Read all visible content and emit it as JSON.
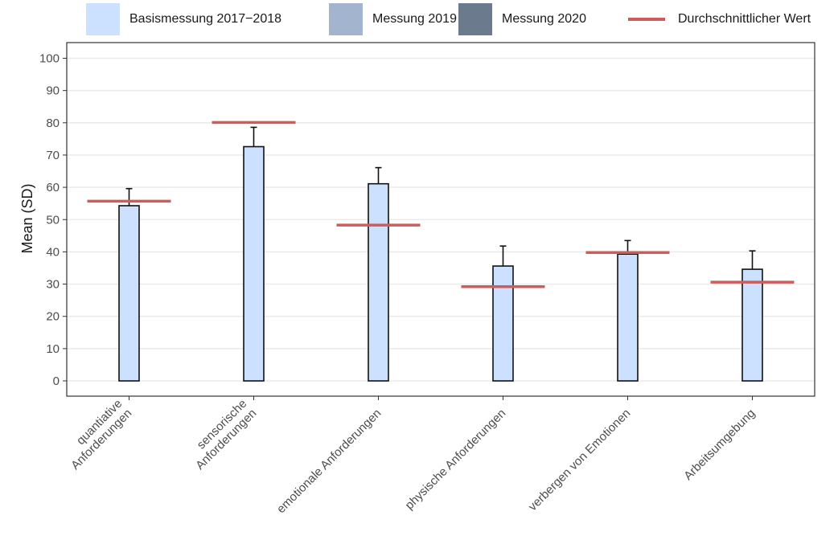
{
  "legend": {
    "items": [
      {
        "label": "Basismessung 2017−2018",
        "color": "#cce0ff",
        "kind": "fill"
      },
      {
        "label": "Messung 2019",
        "color": "#a3b4cf",
        "kind": "fill"
      },
      {
        "label": "Messung 2020",
        "color": "#6b7a8c",
        "kind": "fill"
      },
      {
        "label": "Durchschnittlicher Wert",
        "color": "#cd5c5c",
        "kind": "line"
      }
    ]
  },
  "chart_data": {
    "type": "bar",
    "ylabel": "Mean (SD)",
    "xlabel": "",
    "ylim": [
      0,
      100
    ],
    "yticks": [
      0,
      10,
      20,
      30,
      40,
      50,
      60,
      70,
      80,
      90,
      100
    ],
    "grid": true,
    "legend_position": "top",
    "categories": [
      [
        "quantiative",
        "Anforderungen"
      ],
      [
        "sensorische",
        "Anforderungen"
      ],
      [
        "emotionale Anforderungen"
      ],
      [
        "physische Anforderungen"
      ],
      [
        "verbergen von Emotionen"
      ],
      [
        "Arbeitsumgebung"
      ]
    ],
    "series": [
      {
        "name": "Basismessung 2017−2018",
        "color": "#cce0ff",
        "values": [
          54.3,
          72.6,
          61.1,
          35.6,
          39.3,
          34.6
        ],
        "sd": [
          5.3,
          6.0,
          5.0,
          6.2,
          4.2,
          5.7
        ]
      }
    ],
    "average_lines": {
      "name": "Durchschnittlicher Wert",
      "color": "#cd5c5c",
      "values": [
        55.7,
        80.1,
        48.3,
        29.2,
        39.8,
        30.6
      ]
    }
  }
}
